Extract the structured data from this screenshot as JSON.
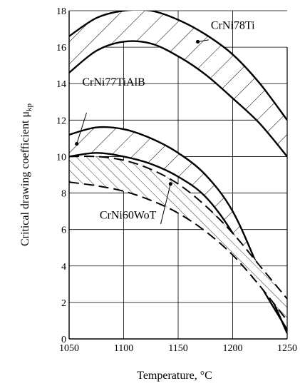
{
  "chart_data": {
    "type": "line",
    "title": "",
    "xlabel": "Temperature, °C",
    "ylabel": "Critical drawing coefficient μ",
    "ylabel_sub": "kp",
    "xlim": [
      1050,
      1250
    ],
    "ylim": [
      0,
      18
    ],
    "xticks": [
      1050,
      1100,
      1150,
      1200,
      1250
    ],
    "yticks": [
      0,
      2,
      4,
      6,
      8,
      10,
      12,
      14,
      16,
      18
    ],
    "grid": "partial",
    "bands": [
      {
        "name": "CrNi78Ti",
        "style": "hatched-forward",
        "upper": {
          "x": [
            1050,
            1075,
            1100,
            1125,
            1150,
            1175,
            1200,
            1225,
            1250
          ],
          "y": [
            16.6,
            17.6,
            18.0,
            18.0,
            17.5,
            16.7,
            15.6,
            14.0,
            12.0
          ]
        },
        "lower": {
          "x": [
            1050,
            1075,
            1100,
            1125,
            1150,
            1175,
            1200,
            1225,
            1250
          ],
          "y": [
            14.6,
            15.8,
            16.3,
            16.2,
            15.5,
            14.5,
            13.2,
            11.8,
            10.0
          ]
        }
      },
      {
        "name": "CrNi77TiAlB",
        "style": "hatched-forward",
        "upper": {
          "x": [
            1050,
            1075,
            1100,
            1125,
            1150,
            1175,
            1200,
            1225,
            1250
          ],
          "y": [
            11.2,
            11.6,
            11.5,
            11.0,
            10.2,
            9.0,
            7.0,
            3.7,
            0.3
          ]
        },
        "lower": {
          "x": [
            1050,
            1075,
            1100,
            1125,
            1150,
            1175,
            1200,
            1225,
            1250
          ],
          "y": [
            10.0,
            10.2,
            10.0,
            9.6,
            8.9,
            7.8,
            5.8,
            3.0,
            0.5
          ]
        }
      },
      {
        "name": "CrNi60WoT",
        "style": "hatched-back",
        "upper": {
          "x": [
            1050,
            1075,
            1100,
            1125,
            1150,
            1175,
            1200,
            1225,
            1250
          ],
          "y": [
            10.0,
            10.0,
            9.8,
            9.3,
            8.5,
            7.3,
            5.8,
            4.0,
            2.2
          ]
        },
        "lower": {
          "x": [
            1050,
            1075,
            1100,
            1125,
            1150,
            1175,
            1200,
            1225,
            1250
          ],
          "y": [
            8.6,
            8.4,
            8.1,
            7.6,
            6.9,
            5.9,
            4.6,
            2.9,
            1.0
          ]
        }
      }
    ],
    "labels": [
      {
        "text": "CrNi78Ti",
        "points_to": "CrNi78Ti"
      },
      {
        "text": "CrNi77TiAlB",
        "points_to": "CrNi77TiAlB"
      },
      {
        "text": "CrNi60WoT",
        "points_to": "CrNi60WoT"
      }
    ]
  }
}
